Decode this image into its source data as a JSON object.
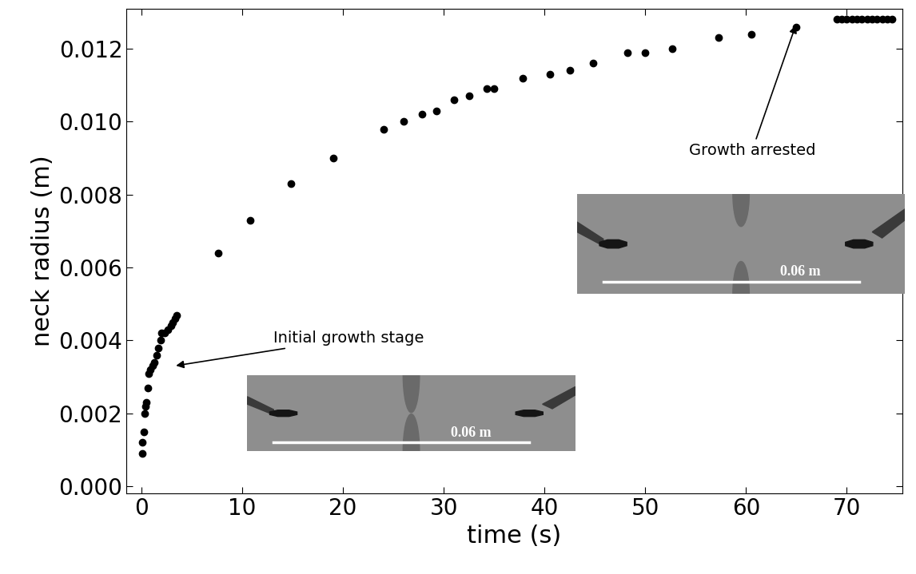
{
  "chart_data": {
    "type": "scatter",
    "x_label": "time (s)",
    "y_label": "neck radius (m)",
    "x": [
      0.05,
      0.1,
      0.2,
      0.3,
      0.4,
      0.5,
      0.6,
      0.7,
      0.9,
      1.1,
      1.3,
      1.5,
      1.7,
      1.9,
      2.0,
      2.3,
      2.6,
      2.9,
      3.1,
      3.3,
      3.5,
      7.6,
      10.8,
      14.8,
      19.0,
      24.0,
      26.0,
      27.8,
      29.3,
      31.0,
      32.5,
      34.3,
      35.0,
      37.8,
      40.5,
      42.5,
      44.8,
      48.2,
      50.0,
      52.7,
      57.3,
      60.5,
      65.0,
      69.0,
      69.5,
      70.0,
      70.5,
      71.0,
      71.5,
      72.0,
      72.5,
      73.0,
      73.5,
      74.0,
      74.5
    ],
    "values": [
      0.0009,
      0.0012,
      0.0015,
      0.002,
      0.0022,
      0.0023,
      0.0027,
      0.0031,
      0.0032,
      0.0033,
      0.0034,
      0.0036,
      0.0038,
      0.004,
      0.0042,
      0.0042,
      0.0043,
      0.0044,
      0.0045,
      0.0046,
      0.0047,
      0.0064,
      0.0073,
      0.0083,
      0.009,
      0.0098,
      0.01,
      0.0102,
      0.0103,
      0.0106,
      0.0107,
      0.0109,
      0.0109,
      0.0112,
      0.0113,
      0.0114,
      0.0116,
      0.0119,
      0.0119,
      0.012,
      0.0123,
      0.0124,
      0.0126,
      0.0128,
      0.0128,
      0.0128,
      0.0128,
      0.0128,
      0.0128,
      0.0128,
      0.0128,
      0.0128,
      0.0128,
      0.0128,
      0.0128
    ],
    "color": "#000000",
    "marker": "circle",
    "xlim": [
      -1.5,
      75.5
    ],
    "xticks": [
      0,
      10,
      20,
      30,
      40,
      50,
      60,
      70
    ],
    "ylim": [
      -0.0002,
      0.0131
    ],
    "yticks": [
      {
        "value": 0.0,
        "label": "0.000"
      },
      {
        "value": 0.002,
        "label": "0.002"
      },
      {
        "value": 0.004,
        "label": "0.004"
      },
      {
        "value": 0.006,
        "label": "0.006"
      },
      {
        "value": 0.008,
        "label": "0.008"
      },
      {
        "value": 0.01,
        "label": "0.010"
      },
      {
        "value": 0.012,
        "label": "0.012"
      }
    ],
    "grid": false,
    "annotations": [
      {
        "text": "Initial growth stage",
        "x": 3.2,
        "y": 0.0033
      },
      {
        "text": "Growth arrested",
        "x": 65.0,
        "y": 0.0127
      }
    ],
    "insets": [
      {
        "scale_label": "0.06 m"
      },
      {
        "scale_label": "0.06 m"
      }
    ]
  }
}
